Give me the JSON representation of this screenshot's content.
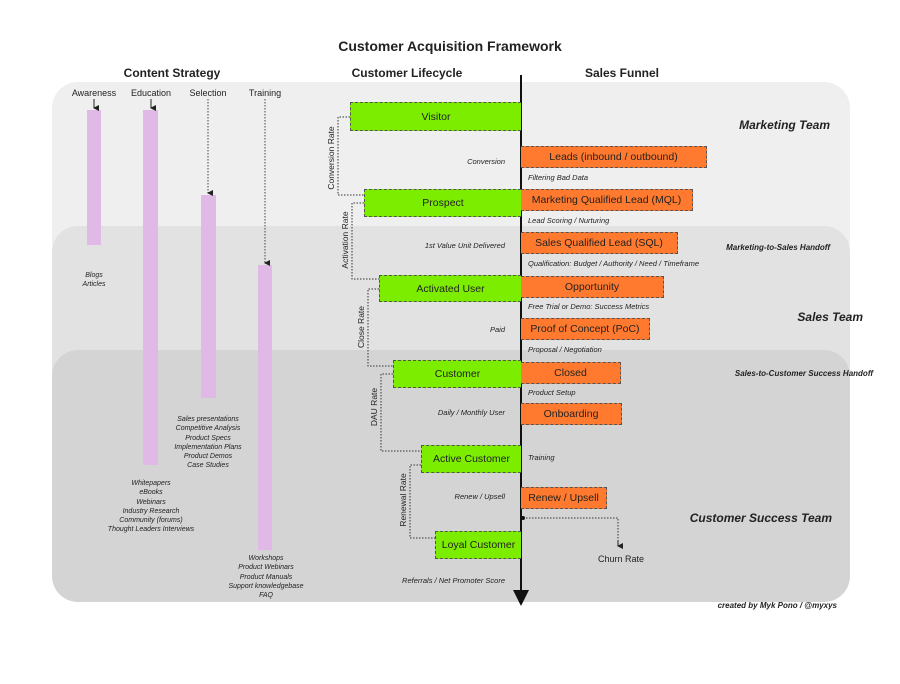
{
  "title": "Customer Acquisition Framework",
  "sections": {
    "content_strategy": "Content Strategy",
    "customer_lifecycle": "Customer Lifecycle",
    "sales_funnel": "Sales Funnel"
  },
  "content_columns": [
    "Awareness",
    "Education",
    "Selection",
    "Training"
  ],
  "content_lists": {
    "awareness": [
      "Blogs",
      "Articles"
    ],
    "selection": [
      "Sales presentations",
      "Competitive Analysis",
      "Product Specs",
      "Implementation Plans",
      "Product Demos",
      "Case Studies"
    ],
    "education": [
      "Whitepapers",
      "eBooks",
      "Webinars",
      "Industry Research",
      "Community (forums)",
      "Thought Leaders Interviews"
    ],
    "training": [
      "Workshops",
      "Product Webinars",
      "Product Manuals",
      "Support knowledgebase",
      "FAQ"
    ]
  },
  "lifecycle_stages": [
    "Visitor",
    "Prospect",
    "Activated User",
    "Customer",
    "Active Customer",
    "Loyal Customer"
  ],
  "rates": [
    "Conversion Rate",
    "Activation Rate",
    "Close Rate",
    "DAU Rate",
    "Renewal Rate"
  ],
  "lifecycle_labels": [
    "Conversion",
    "1st Value Unit Delivered",
    "Paid",
    "Daily / Monthly User",
    "Renew / Upsell",
    "Referrals / Net Promoter Score"
  ],
  "funnel_stages": [
    "Leads (inbound / outbound)",
    "Marketing Qualified Lead (MQL)",
    "Sales Qualified Lead (SQL)",
    "Opportunity",
    "Proof of Concept (PoC)",
    "Closed",
    "Onboarding",
    "Renew / Upsell"
  ],
  "funnel_labels": [
    "Filtering Bad Data",
    "Lead Scoring / Nurturing",
    "Qualification: Budget / Authority / Need / Timeframe",
    "Free Trial or Demo: Success Metrics",
    "Proposal / Negotiation",
    "Product Setup",
    "Training"
  ],
  "churn": "Churn Rate",
  "teams": {
    "marketing": "Marketing Team",
    "handoff1": "Marketing-to-Sales Handoff",
    "sales": "Sales Team",
    "handoff2": "Sales-to-Customer Success Handoff",
    "success": "Customer Success Team"
  },
  "credit": "created by Myk Pono / @myxys",
  "colors": {
    "lifecycle": "#7ded00",
    "funnel": "#ff7a2e",
    "content": "#e0b9e6"
  }
}
